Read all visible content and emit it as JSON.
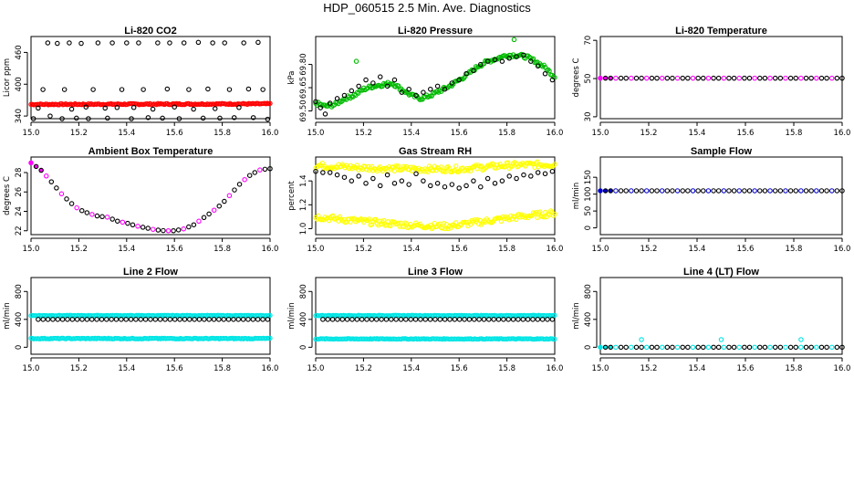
{
  "figure": {
    "title": "HDP_060515  2.5 Min. Ave. Diagnostics"
  },
  "chart_data": [
    {
      "type": "scatter",
      "title": "Li-820 CO2",
      "xlabel": "",
      "ylabel": "Licor ppm",
      "xlim": [
        15.0,
        16.0
      ],
      "ylim": [
        335,
        490
      ],
      "xticks": [
        "15.0",
        "15.2",
        "15.4",
        "15.6",
        "15.8",
        "16.0"
      ],
      "yticks": [
        340,
        400,
        460
      ],
      "grid": false,
      "series": [
        {
          "style": "dense",
          "color": "#ff0000",
          "x": [
            15.0,
            16.0
          ],
          "y": [
            362,
            363
          ],
          "noise": 1.2
        },
        {
          "style": "sparse",
          "color": "#000000",
          "x": [
            15.01,
            15.03,
            15.05,
            15.07,
            15.08,
            15.11,
            15.13,
            15.14,
            15.16,
            15.17,
            15.19,
            15.21,
            15.23,
            15.24,
            15.26,
            15.28,
            15.31,
            15.32,
            15.34,
            15.36,
            15.38,
            15.4,
            15.42,
            15.43,
            15.45,
            15.47,
            15.49,
            15.51,
            15.53,
            15.55,
            15.57,
            15.58,
            15.6,
            15.62,
            15.64,
            15.66,
            15.68,
            15.7,
            15.72,
            15.74,
            15.76,
            15.77,
            15.79,
            15.81,
            15.83,
            15.85,
            15.87,
            15.89,
            15.91,
            15.93,
            15.95,
            15.97,
            15.99
          ],
          "y": [
            335,
            355,
            390,
            478,
            340,
            477,
            335,
            390,
            478,
            353,
            336,
            477,
            357,
            335,
            390,
            478,
            355,
            336,
            478,
            356,
            390,
            478,
            335,
            356,
            478,
            390,
            337,
            353,
            478,
            336,
            391,
            478,
            357,
            335,
            478,
            390,
            353,
            479,
            336,
            391,
            478,
            354,
            336,
            478,
            390,
            337,
            356,
            478,
            391,
            337,
            479,
            390,
            334
          ]
        }
      ]
    },
    {
      "type": "scatter",
      "title": "Li-820 Pressure",
      "xlabel": "",
      "ylabel": "kPa",
      "xlim": [
        15.0,
        16.0
      ],
      "ylim": [
        69.45,
        69.98
      ],
      "xticks": [
        "15.0",
        "15.2",
        "15.4",
        "15.6",
        "15.8",
        "16.0"
      ],
      "yticks": [
        69.5,
        69.65,
        69.8
      ],
      "grid": false,
      "series": [
        {
          "style": "dense",
          "color": "#00bb00",
          "noise": 0.012,
          "x": [
            15.0,
            15.04,
            15.08,
            15.12,
            15.16,
            15.2,
            15.24,
            15.28,
            15.32,
            15.36,
            15.4,
            15.44,
            15.48,
            15.52,
            15.56,
            15.6,
            15.64,
            15.68,
            15.72,
            15.76,
            15.8,
            15.84,
            15.88,
            15.92,
            15.96,
            16.0
          ],
          "y": [
            69.55,
            69.53,
            69.54,
            69.58,
            69.6,
            69.64,
            69.66,
            69.67,
            69.68,
            69.64,
            69.6,
            69.58,
            69.6,
            69.63,
            69.66,
            69.7,
            69.74,
            69.79,
            69.82,
            69.84,
            69.86,
            69.86,
            69.85,
            69.82,
            69.78,
            69.72
          ]
        },
        {
          "style": "sparse",
          "color": "#000000",
          "x": [
            15.0,
            15.02,
            15.04,
            15.06,
            15.09,
            15.12,
            15.15,
            15.18,
            15.21,
            15.24,
            15.27,
            15.3,
            15.33,
            15.36,
            15.39,
            15.42,
            15.45,
            15.48,
            15.51,
            15.54,
            15.57,
            15.6,
            15.63,
            15.66,
            15.69,
            15.72,
            15.75,
            15.78,
            15.81,
            15.84,
            15.87,
            15.9,
            15.93,
            15.96,
            15.99
          ],
          "y": [
            69.56,
            69.52,
            69.48,
            69.55,
            69.58,
            69.6,
            69.63,
            69.66,
            69.7,
            69.68,
            69.72,
            69.66,
            69.7,
            69.62,
            69.64,
            69.6,
            69.62,
            69.64,
            69.66,
            69.64,
            69.68,
            69.7,
            69.74,
            69.76,
            69.8,
            69.82,
            69.83,
            69.82,
            69.84,
            69.85,
            69.86,
            69.82,
            69.79,
            69.74,
            69.7
          ]
        },
        {
          "style": "sparse",
          "color": "#00bb00",
          "x": [
            15.17,
            15.83
          ],
          "y": [
            69.82,
            69.96
          ]
        }
      ]
    },
    {
      "type": "scatter",
      "title": "Li-820 Temperature",
      "xlabel": "",
      "ylabel": "degrees C",
      "xlim": [
        15.0,
        16.0
      ],
      "ylim": [
        29,
        72
      ],
      "xticks": [
        "15.0",
        "15.2",
        "15.4",
        "15.6",
        "15.8",
        "16.0"
      ],
      "yticks": [
        30,
        50,
        70
      ],
      "grid": false,
      "series": [
        {
          "style": "line-points",
          "color": "#000000",
          "fill": "#ff00ff",
          "x": [
            15.0,
            16.0
          ],
          "y": [
            50.2,
            50.2
          ]
        }
      ]
    },
    {
      "type": "scatter",
      "title": "Ambient Box Temperature",
      "xlabel": "",
      "ylabel": "degrees C",
      "xlim": [
        15.0,
        16.0
      ],
      "ylim": [
        21.6,
        29.6
      ],
      "xticks": [
        "15.0",
        "15.2",
        "15.4",
        "15.6",
        "15.8",
        "16.0"
      ],
      "yticks": [
        22,
        24,
        26,
        28
      ],
      "grid": false,
      "series": [
        {
          "style": "line-points",
          "color": "#000000",
          "fill": "#ff00ff",
          "x": [
            15.0,
            15.04,
            15.08,
            15.12,
            15.16,
            15.2,
            15.24,
            15.28,
            15.32,
            15.36,
            15.4,
            15.44,
            15.48,
            15.52,
            15.56,
            15.6,
            15.64,
            15.68,
            15.72,
            15.76,
            15.8,
            15.84,
            15.88,
            15.92,
            15.96,
            16.0
          ],
          "y": [
            29.0,
            28.3,
            27.2,
            26.0,
            25.0,
            24.2,
            23.8,
            23.5,
            23.4,
            23.0,
            22.8,
            22.5,
            22.3,
            22.1,
            22.0,
            22.0,
            22.2,
            22.6,
            23.3,
            24.0,
            24.8,
            25.9,
            27.0,
            27.8,
            28.3,
            28.4
          ]
        }
      ]
    },
    {
      "type": "scatter",
      "title": "Gas Stream RH",
      "xlabel": "",
      "ylabel": "percent",
      "xlim": [
        15.0,
        16.0
      ],
      "ylim": [
        0.95,
        1.6
      ],
      "xticks": [
        "15.0",
        "15.2",
        "15.4",
        "15.6",
        "15.8",
        "16.0"
      ],
      "yticks": [
        1.0,
        1.2,
        1.4
      ],
      "grid": false,
      "series": [
        {
          "style": "dense",
          "color": "#ffff00",
          "noise": 0.025,
          "x": [
            15.0,
            15.2,
            15.4,
            15.6,
            15.8,
            16.0
          ],
          "y": [
            1.53,
            1.51,
            1.5,
            1.5,
            1.53,
            1.54
          ]
        },
        {
          "style": "dense",
          "color": "#ffff00",
          "noise": 0.025,
          "x": [
            15.0,
            15.2,
            15.4,
            15.55,
            15.7,
            15.85,
            16.0
          ],
          "y": [
            1.1,
            1.06,
            1.03,
            1.02,
            1.06,
            1.1,
            1.13
          ]
        },
        {
          "style": "sparse",
          "color": "#000000",
          "x": [
            15.0,
            15.03,
            15.06,
            15.09,
            15.12,
            15.15,
            15.18,
            15.21,
            15.24,
            15.27,
            15.3,
            15.33,
            15.36,
            15.39,
            15.42,
            15.45,
            15.48,
            15.51,
            15.54,
            15.57,
            15.6,
            15.63,
            15.66,
            15.69,
            15.72,
            15.75,
            15.78,
            15.81,
            15.84,
            15.87,
            15.9,
            15.93,
            15.96,
            15.99
          ],
          "y": [
            1.48,
            1.47,
            1.47,
            1.45,
            1.43,
            1.4,
            1.44,
            1.38,
            1.42,
            1.36,
            1.45,
            1.38,
            1.4,
            1.37,
            1.46,
            1.4,
            1.36,
            1.38,
            1.35,
            1.37,
            1.34,
            1.36,
            1.4,
            1.35,
            1.42,
            1.38,
            1.4,
            1.44,
            1.42,
            1.45,
            1.44,
            1.47,
            1.46,
            1.48
          ]
        }
      ]
    },
    {
      "type": "scatter",
      "title": "Sample Flow",
      "xlabel": "",
      "ylabel": "ml/min",
      "xlim": [
        15.0,
        16.0
      ],
      "ylim": [
        -20,
        210
      ],
      "xticks": [
        "15.0",
        "15.2",
        "15.4",
        "15.6",
        "15.8",
        "16.0"
      ],
      "yticks": [
        0,
        50,
        100,
        150
      ],
      "grid": false,
      "series": [
        {
          "style": "line-points",
          "color": "#000000",
          "fill": "#0000cc",
          "x": [
            15.0,
            16.0
          ],
          "y": [
            110,
            110
          ]
        }
      ]
    },
    {
      "type": "scatter",
      "title": "Line 2 Flow",
      "xlabel": "",
      "ylabel": "ml/min",
      "xlim": [
        15.0,
        16.0
      ],
      "ylim": [
        -100,
        1000
      ],
      "xticks": [
        "15.0",
        "15.2",
        "15.4",
        "15.6",
        "15.8",
        "16.0"
      ],
      "yticks": [
        0,
        400,
        800
      ],
      "grid": false,
      "series": [
        {
          "style": "dense",
          "color": "#00e5e5",
          "x": [
            15.0,
            16.0
          ],
          "y": [
            455,
            455
          ],
          "noise": 4
        },
        {
          "style": "dense",
          "color": "#00e5e5",
          "x": [
            15.0,
            16.0
          ],
          "y": [
            125,
            125
          ],
          "noise": 6
        },
        {
          "style": "line-points",
          "color": "#000000",
          "x": [
            15.03,
            15.99
          ],
          "y": [
            400,
            400
          ]
        }
      ]
    },
    {
      "type": "scatter",
      "title": "Line 3 Flow",
      "xlabel": "",
      "ylabel": "ml/min",
      "xlim": [
        15.0,
        16.0
      ],
      "ylim": [
        -100,
        1000
      ],
      "xticks": [
        "15.0",
        "15.2",
        "15.4",
        "15.6",
        "15.8",
        "16.0"
      ],
      "yticks": [
        0,
        400,
        800
      ],
      "grid": false,
      "series": [
        {
          "style": "dense",
          "color": "#00e5e5",
          "x": [
            15.0,
            16.0
          ],
          "y": [
            455,
            455
          ],
          "noise": 4
        },
        {
          "style": "dense",
          "color": "#00e5e5",
          "x": [
            15.0,
            16.0
          ],
          "y": [
            120,
            120
          ],
          "noise": 5
        },
        {
          "style": "line-points",
          "color": "#000000",
          "x": [
            15.03,
            15.99
          ],
          "y": [
            400,
            400
          ]
        }
      ]
    },
    {
      "type": "scatter",
      "title": "Line 4 (LT) Flow",
      "xlabel": "",
      "ylabel": "ml/min",
      "xlim": [
        15.0,
        16.0
      ],
      "ylim": [
        -100,
        1000
      ],
      "xticks": [
        "15.0",
        "15.2",
        "15.4",
        "15.6",
        "15.8",
        "16.0"
      ],
      "yticks": [
        0,
        400,
        800
      ],
      "grid": false,
      "series": [
        {
          "style": "line-points",
          "color": "#000000",
          "fill": "#00e5e5",
          "x": [
            15.0,
            16.0
          ],
          "y": [
            0,
            0
          ]
        },
        {
          "style": "sparse",
          "color": "#00e5e5",
          "x": [
            15.17,
            15.5,
            15.83
          ],
          "y": [
            110,
            110,
            110
          ]
        }
      ]
    }
  ]
}
